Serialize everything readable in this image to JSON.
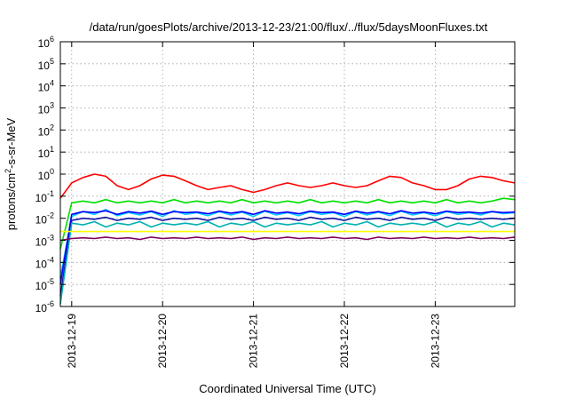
{
  "chart_data": {
    "type": "line",
    "title": "/data/run/goesPlots/archive/2013-12-23/21:00/flux/../flux/5daysMoonFluxes.txt",
    "xlabel": "Coordinated Universal Time (UTC)",
    "ylabel_parts": [
      "protons/cm",
      "2",
      "-s-sr-MeV"
    ],
    "x_range": [
      "2013-12-18T21:00",
      "2013-12-23T21:00"
    ],
    "x_ticks": [
      "2013-12-19",
      "2013-12-20",
      "2013-12-21",
      "2013-12-22",
      "2013-12-23"
    ],
    "y_scale": "log",
    "ylim": [
      1e-06,
      1000000.0
    ],
    "y_ticks": [
      {
        "base": "10",
        "exp": "-6"
      },
      {
        "base": "10",
        "exp": "-5"
      },
      {
        "base": "10",
        "exp": "-4"
      },
      {
        "base": "10",
        "exp": "-3"
      },
      {
        "base": "10",
        "exp": "-2"
      },
      {
        "base": "10",
        "exp": "-1"
      },
      {
        "base": "10",
        "exp": "0"
      },
      {
        "base": "10",
        "exp": "1"
      },
      {
        "base": "10",
        "exp": "2"
      },
      {
        "base": "10",
        "exp": "3"
      },
      {
        "base": "10",
        "exp": "4"
      },
      {
        "base": "10",
        "exp": "5"
      },
      {
        "base": "10",
        "exp": "6"
      }
    ],
    "grid": true,
    "series": [
      {
        "color": "#ff0000",
        "start": "2013-12-18T21:00",
        "interval_hours": 3,
        "values": [
          0.08,
          0.4,
          0.7,
          1.0,
          0.8,
          0.3,
          0.2,
          0.3,
          0.6,
          0.9,
          0.8,
          0.5,
          0.3,
          0.2,
          0.25,
          0.3,
          0.2,
          0.15,
          0.2,
          0.3,
          0.4,
          0.3,
          0.25,
          0.3,
          0.4,
          0.3,
          0.25,
          0.3,
          0.5,
          0.8,
          0.7,
          0.4,
          0.3,
          0.2,
          0.2,
          0.3,
          0.6,
          0.8,
          0.7,
          0.5,
          0.4
        ]
      },
      {
        "color": "#00e000",
        "start": "2013-12-18T21:00",
        "interval_hours": 3,
        "values": [
          0.0004,
          0.05,
          0.06,
          0.05,
          0.07,
          0.05,
          0.06,
          0.05,
          0.06,
          0.05,
          0.07,
          0.05,
          0.06,
          0.05,
          0.06,
          0.05,
          0.07,
          0.05,
          0.06,
          0.05,
          0.06,
          0.05,
          0.07,
          0.05,
          0.06,
          0.05,
          0.06,
          0.05,
          0.07,
          0.05,
          0.06,
          0.05,
          0.06,
          0.05,
          0.07,
          0.05,
          0.06,
          0.05,
          0.06,
          0.08,
          0.07
        ]
      },
      {
        "color": "#00c8ff",
        "start": "2013-12-18T21:00",
        "interval_hours": 3,
        "values": [
          2e-05,
          0.012,
          0.02,
          0.015,
          0.025,
          0.013,
          0.018,
          0.014,
          0.02,
          0.012,
          0.022,
          0.015,
          0.018,
          0.013,
          0.02,
          0.014,
          0.019,
          0.012,
          0.021,
          0.014,
          0.018,
          0.013,
          0.02,
          0.015,
          0.018,
          0.012,
          0.02,
          0.014,
          0.019,
          0.013,
          0.021,
          0.014,
          0.018,
          0.013,
          0.02,
          0.015,
          0.018,
          0.014,
          0.02,
          0.016,
          0.018
        ]
      },
      {
        "color": "#0000ff",
        "start": "2013-12-18T21:00",
        "interval_hours": 3,
        "values": [
          1e-05,
          0.015,
          0.02,
          0.018,
          0.022,
          0.015,
          0.02,
          0.017,
          0.021,
          0.015,
          0.02,
          0.018,
          0.019,
          0.016,
          0.021,
          0.017,
          0.02,
          0.015,
          0.022,
          0.017,
          0.019,
          0.016,
          0.021,
          0.018,
          0.019,
          0.015,
          0.021,
          0.017,
          0.02,
          0.016,
          0.022,
          0.017,
          0.019,
          0.016,
          0.021,
          0.018,
          0.019,
          0.017,
          0.02,
          0.018,
          0.019
        ]
      },
      {
        "color": "#1010a0",
        "start": "2013-12-18T21:00",
        "interval_hours": 3,
        "values": [
          3e-06,
          0.008,
          0.01,
          0.009,
          0.011,
          0.008,
          0.01,
          0.009,
          0.011,
          0.008,
          0.01,
          0.009,
          0.01,
          0.008,
          0.011,
          0.009,
          0.01,
          0.008,
          0.011,
          0.009,
          0.01,
          0.008,
          0.011,
          0.009,
          0.01,
          0.008,
          0.011,
          0.009,
          0.01,
          0.008,
          0.011,
          0.009,
          0.01,
          0.008,
          0.011,
          0.009,
          0.01,
          0.009,
          0.01,
          0.009,
          0.01
        ]
      },
      {
        "color": "#00b0b0",
        "start": "2013-12-18T21:00",
        "interval_hours": 3,
        "values": [
          1.3e-06,
          0.006,
          0.005,
          0.007,
          0.004,
          0.006,
          0.005,
          0.007,
          0.004,
          0.006,
          0.005,
          0.006,
          0.005,
          0.007,
          0.004,
          0.006,
          0.005,
          0.007,
          0.004,
          0.006,
          0.005,
          0.006,
          0.005,
          0.007,
          0.004,
          0.006,
          0.005,
          0.007,
          0.004,
          0.006,
          0.005,
          0.006,
          0.005,
          0.007,
          0.004,
          0.006,
          0.005,
          0.007,
          0.004,
          0.006,
          0.005
        ]
      },
      {
        "color": "#ffff00",
        "start": "2013-12-18T21:00",
        "interval_hours": 3,
        "values": [
          0.0025,
          0.0025,
          0.0025,
          0.0025,
          0.0025,
          0.0025,
          0.0025,
          0.0025,
          0.0025,
          0.0025,
          0.0025,
          0.0025,
          0.0025,
          0.0025,
          0.0025,
          0.0025,
          0.0025,
          0.0025,
          0.0025,
          0.0025,
          0.0025,
          0.0025,
          0.0025,
          0.0025,
          0.0025,
          0.0025,
          0.0025,
          0.0025,
          0.0025,
          0.0025,
          0.0025,
          0.0025,
          0.0025,
          0.0025,
          0.0025,
          0.0025,
          0.0025,
          0.0025,
          0.0025,
          0.0025,
          0.0025
        ]
      },
      {
        "color": "#800060",
        "start": "2013-12-18T21:00",
        "interval_hours": 3,
        "values": [
          0.001,
          0.0012,
          0.0013,
          0.0012,
          0.0014,
          0.0012,
          0.0013,
          0.0011,
          0.0014,
          0.0012,
          0.0013,
          0.0012,
          0.0014,
          0.0012,
          0.0013,
          0.0012,
          0.0014,
          0.0011,
          0.0013,
          0.0012,
          0.0014,
          0.0012,
          0.0013,
          0.0012,
          0.0014,
          0.0012,
          0.0013,
          0.0011,
          0.0014,
          0.0012,
          0.0013,
          0.0012,
          0.0014,
          0.0012,
          0.0013,
          0.0012,
          0.0014,
          0.0012,
          0.0013,
          0.0012,
          0.0014
        ]
      }
    ]
  }
}
